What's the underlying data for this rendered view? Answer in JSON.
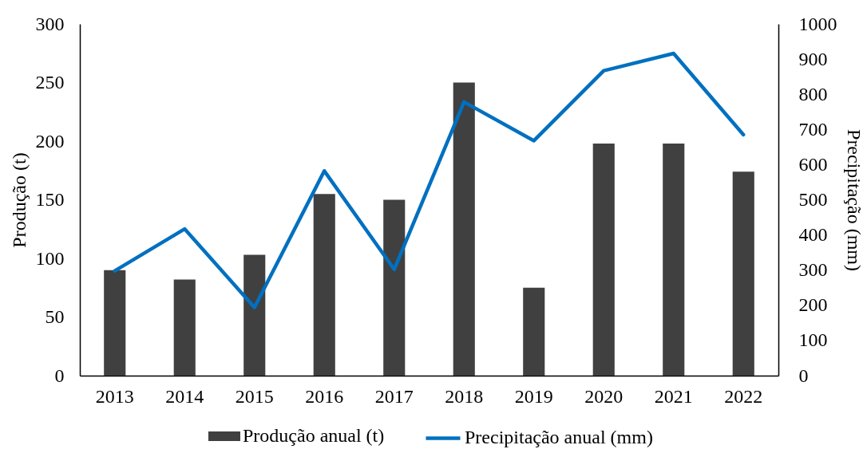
{
  "chart_data": {
    "type": "bar",
    "categories": [
      "2013",
      "2014",
      "2015",
      "2016",
      "2017",
      "2018",
      "2019",
      "2020",
      "2021",
      "2022"
    ],
    "ylabel": "Produção (t)",
    "y2label": "Precipitação (mm)",
    "ylim": [
      0,
      300
    ],
    "yticks": [
      0,
      50,
      100,
      150,
      200,
      250,
      300
    ],
    "y2lim": [
      0,
      1000
    ],
    "y2ticks": [
      0,
      100,
      200,
      300,
      400,
      500,
      600,
      700,
      800,
      900,
      1000
    ],
    "legend": "bottom",
    "series": [
      {
        "name": "Produção anual (t)",
        "color": "#404040",
        "values": [
          90,
          82,
          103,
          155,
          150,
          250,
          75,
          198,
          198,
          174
        ]
      },
      {
        "name": "Precipitação anual (mm)",
        "type": "line",
        "axis": "y2",
        "color": "#0070c0",
        "values": [
          298,
          417,
          194,
          582,
          302,
          778,
          668,
          867,
          916,
          685
        ]
      }
    ]
  }
}
